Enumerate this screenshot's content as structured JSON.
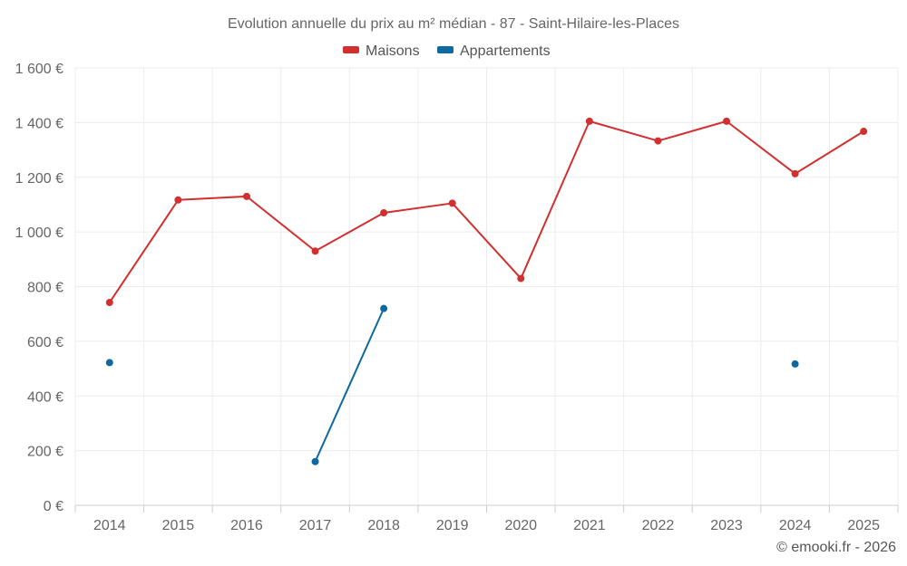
{
  "chart_data": {
    "type": "line",
    "title": "Evolution annuelle du prix au m² médian - 87 - Saint-Hilaire-les-Places",
    "categories": [
      "2014",
      "2015",
      "2016",
      "2017",
      "2018",
      "2019",
      "2020",
      "2021",
      "2022",
      "2023",
      "2024",
      "2025"
    ],
    "ylim": [
      0,
      1600
    ],
    "yticks": [
      0,
      200,
      400,
      600,
      800,
      1000,
      1200,
      1400,
      1600
    ],
    "ytick_labels": [
      "0 €",
      "200 €",
      "400 €",
      "600 €",
      "800 €",
      "1 000 €",
      "1 200 €",
      "1 400 €",
      "1 600 €"
    ],
    "grid": true,
    "legend_position": "top-center",
    "series": [
      {
        "name": "Maisons",
        "color": "#d32f2f",
        "values": [
          742,
          1117,
          1130,
          930,
          1070,
          1105,
          830,
          1405,
          1333,
          1405,
          1213,
          1368
        ]
      },
      {
        "name": "Appartements",
        "color": "#0d6aa0",
        "values": [
          522,
          null,
          null,
          160,
          720,
          null,
          null,
          null,
          null,
          null,
          517,
          null
        ]
      }
    ]
  },
  "credit": "© emooki.fr - 2026"
}
